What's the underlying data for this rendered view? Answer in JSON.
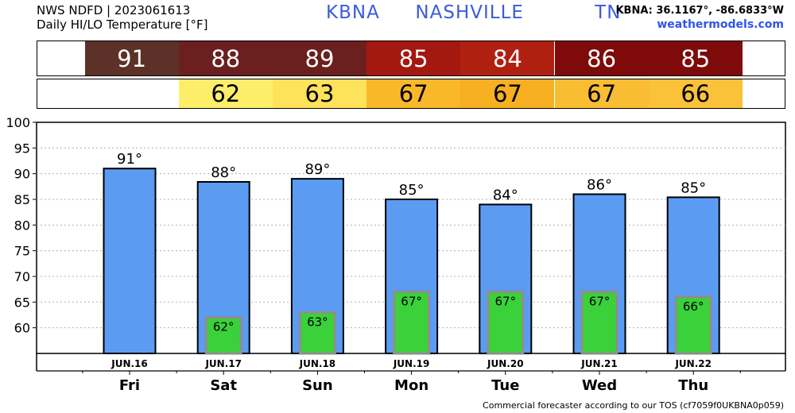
{
  "header": {
    "line1": "NWS NDFD | 2023061613",
    "line2": "Daily HI/LO Temperature [°F]",
    "station": "KBNA  NASHVILLE    TN",
    "coords": "KBNA: 36.1167°, -86.6833°W",
    "site": "weathermodels.com"
  },
  "hi_row": [
    {
      "value": "91",
      "color": "#5c3128"
    },
    {
      "value": "88",
      "color": "#6b1f1f"
    },
    {
      "value": "89",
      "color": "#6b1f1f"
    },
    {
      "value": "85",
      "color": "#a3180f"
    },
    {
      "value": "84",
      "color": "#b02010"
    },
    {
      "value": "86",
      "color": "#7e0a0a"
    },
    {
      "value": "85",
      "color": "#7e0a0a"
    }
  ],
  "lo_row": [
    {
      "value": "",
      "color": "#ffffff"
    },
    {
      "value": "62",
      "color": "#fdee6a"
    },
    {
      "value": "63",
      "color": "#fde25a"
    },
    {
      "value": "67",
      "color": "#f9b82a"
    },
    {
      "value": "67",
      "color": "#f7b022"
    },
    {
      "value": "67",
      "color": "#f9bd33"
    },
    {
      "value": "66",
      "color": "#f9c238"
    }
  ],
  "chart_data": {
    "type": "bar",
    "categories": [
      "Fri",
      "Sat",
      "Sun",
      "Mon",
      "Tue",
      "Wed",
      "Thu"
    ],
    "dates": [
      "JUN.16",
      "JUN.17",
      "JUN.18",
      "JUN.19",
      "JUN.20",
      "JUN.21",
      "JUN.22"
    ],
    "series": [
      {
        "values": [
          91,
          88.4,
          89,
          85,
          84,
          86,
          85.4
        ],
        "color": "#5b9cf2"
      },
      {
        "values": [
          null,
          62,
          63,
          67,
          67,
          67,
          66
        ],
        "color": "#3ad13a"
      }
    ],
    "hi_labels": [
      "91°",
      "88°",
      "89°",
      "85°",
      "84°",
      "86°",
      "85°"
    ],
    "lo_labels": [
      "",
      "62°",
      "63°",
      "67°",
      "67°",
      "67°",
      "66°"
    ],
    "ylim": [
      55,
      100
    ],
    "yticks": [
      60,
      65,
      70,
      75,
      80,
      85,
      90,
      95,
      100
    ],
    "grid": true
  },
  "footer": "Commercial forecaster according to our TOS (cf7059f0UKBNA0p059)"
}
